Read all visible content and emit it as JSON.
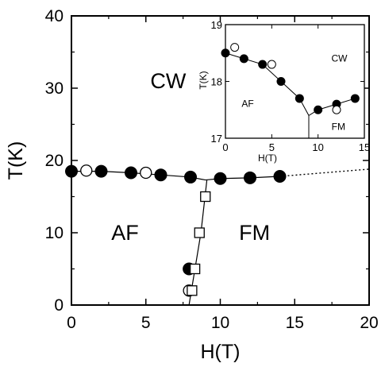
{
  "chart_data": [
    {
      "type": "scatter",
      "panel": "main",
      "xlabel": "H(T)",
      "ylabel": "T(K)",
      "xlim": [
        0,
        20
      ],
      "ylim": [
        0,
        40
      ],
      "xticks": [
        0,
        5,
        10,
        15,
        20
      ],
      "yticks": [
        0,
        10,
        20,
        30,
        40
      ],
      "region_labels": [
        "CW",
        "AF",
        "FM"
      ],
      "series": [
        {
          "marker": "filled-circle",
          "x": [
            0,
            2,
            4,
            6,
            8,
            10,
            12,
            14,
            7.9
          ],
          "y": [
            18.5,
            18.5,
            18.3,
            18.0,
            17.7,
            17.5,
            17.6,
            17.8,
            5.0
          ]
        },
        {
          "marker": "open-circle",
          "x": [
            1,
            5,
            7.9
          ],
          "y": [
            18.6,
            18.3,
            2.0
          ]
        },
        {
          "marker": "open-square",
          "x": [
            9.0,
            8.6,
            8.3,
            8.1
          ],
          "y": [
            15,
            10,
            5,
            2
          ]
        }
      ],
      "lines": [
        {
          "style": "solid",
          "x": [
            0,
            2,
            4,
            6,
            8,
            9,
            10,
            12,
            14
          ],
          "y": [
            18.5,
            18.5,
            18.3,
            18.0,
            17.7,
            17.3,
            17.5,
            17.6,
            17.8
          ]
        },
        {
          "style": "solid",
          "x": [
            7.9,
            8.3,
            8.7,
            9.1
          ],
          "y": [
            0,
            5,
            10,
            17.3
          ]
        },
        {
          "style": "dotted",
          "x": [
            14,
            20
          ],
          "y": [
            17.8,
            18.8
          ]
        }
      ]
    },
    {
      "type": "scatter",
      "panel": "inset",
      "xlabel": "H(T)",
      "ylabel": "T(K)",
      "xlim": [
        0,
        15
      ],
      "ylim": [
        17,
        19
      ],
      "xticks": [
        0,
        5,
        10,
        15
      ],
      "yticks": [
        17,
        18,
        19
      ],
      "region_labels": [
        "CW",
        "AF",
        "FM"
      ],
      "series": [
        {
          "marker": "filled-circle",
          "x": [
            0,
            2,
            4,
            6,
            8,
            10,
            12,
            14
          ],
          "y": [
            18.5,
            18.4,
            18.3,
            18.0,
            17.7,
            17.5,
            17.6,
            17.7
          ]
        },
        {
          "marker": "open-circle",
          "x": [
            1,
            5,
            12
          ],
          "y": [
            18.6,
            18.3,
            17.5
          ]
        }
      ],
      "lines": [
        {
          "style": "solid",
          "x": [
            0,
            2,
            4,
            6,
            8,
            9,
            10,
            12,
            14
          ],
          "y": [
            18.5,
            18.4,
            18.3,
            18.0,
            17.7,
            17.4,
            17.5,
            17.6,
            17.7
          ]
        },
        {
          "style": "solid",
          "x": [
            9,
            9
          ],
          "y": [
            17,
            17.4
          ]
        }
      ]
    }
  ]
}
